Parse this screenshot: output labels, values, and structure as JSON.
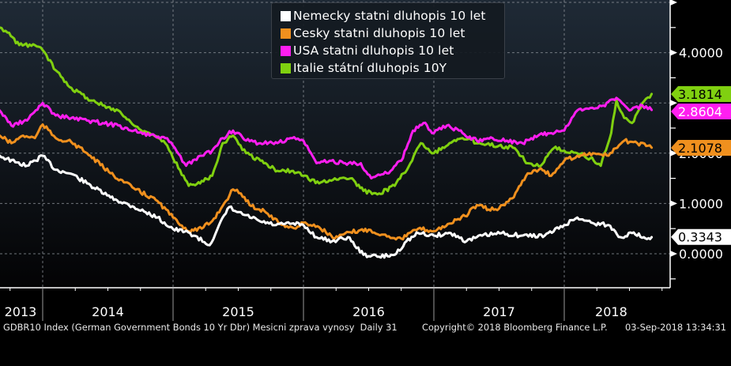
{
  "chart_data": {
    "type": "line",
    "title": "",
    "xlabel": "",
    "ylabel": "",
    "x_range": [
      2013.67,
      2018.73
    ],
    "ylim": [
      -0.65,
      5.05
    ],
    "y_axis_side": "right",
    "y_ticks": [
      0,
      1,
      2,
      4
    ],
    "y_tick_labels": [
      "0.0000",
      "1.0000",
      "2.0000",
      "4.0000"
    ],
    "y_minor_ticks": [
      -0.5,
      0.5,
      1.5,
      2.5,
      3,
      3.5,
      4.5,
      5
    ],
    "gridlines_y": [
      0,
      1,
      2,
      3,
      4,
      5
    ],
    "gridlines_x": [
      2014,
      2015,
      2016,
      2017,
      2018
    ],
    "x_tick_labels": [
      {
        "label": "2013",
        "center": 2013.83
      },
      {
        "label": "2014",
        "center": 2014.5
      },
      {
        "label": "2015",
        "center": 2015.5
      },
      {
        "label": "2016",
        "center": 2016.5
      },
      {
        "label": "2017",
        "center": 2017.5
      },
      {
        "label": "2018",
        "center": 2018.36
      }
    ],
    "year_separators": [
      2014,
      2015,
      2016,
      2017,
      2018
    ],
    "grid": true,
    "legend": {
      "placement": "top-center"
    },
    "series": [
      {
        "name": "Nemecky statni dluhopis 10 let",
        "color": "#ffffff",
        "label_text_color": "#000000",
        "last_value": "0.3343",
        "points": [
          [
            2013.67,
            1.95
          ],
          [
            2013.79,
            1.82
          ],
          [
            2013.88,
            1.75
          ],
          [
            2014.0,
            1.95
          ],
          [
            2014.1,
            1.67
          ],
          [
            2014.22,
            1.59
          ],
          [
            2014.34,
            1.4
          ],
          [
            2014.52,
            1.12
          ],
          [
            2014.7,
            0.93
          ],
          [
            2014.88,
            0.72
          ],
          [
            2015.0,
            0.49
          ],
          [
            2015.13,
            0.41
          ],
          [
            2015.28,
            0.17
          ],
          [
            2015.34,
            0.49
          ],
          [
            2015.43,
            0.93
          ],
          [
            2015.49,
            0.83
          ],
          [
            2015.55,
            0.77
          ],
          [
            2015.67,
            0.64
          ],
          [
            2015.79,
            0.57
          ],
          [
            2015.91,
            0.6
          ],
          [
            2016.0,
            0.57
          ],
          [
            2016.1,
            0.33
          ],
          [
            2016.22,
            0.25
          ],
          [
            2016.34,
            0.33
          ],
          [
            2016.46,
            -0.02
          ],
          [
            2016.58,
            -0.06
          ],
          [
            2016.7,
            -0.02
          ],
          [
            2016.79,
            0.25
          ],
          [
            2016.88,
            0.41
          ],
          [
            2017.0,
            0.36
          ],
          [
            2017.13,
            0.41
          ],
          [
            2017.25,
            0.25
          ],
          [
            2017.37,
            0.36
          ],
          [
            2017.52,
            0.41
          ],
          [
            2017.67,
            0.36
          ],
          [
            2017.85,
            0.36
          ],
          [
            2018.0,
            0.57
          ],
          [
            2018.1,
            0.72
          ],
          [
            2018.22,
            0.61
          ],
          [
            2018.34,
            0.57
          ],
          [
            2018.43,
            0.33
          ],
          [
            2018.52,
            0.41
          ],
          [
            2018.61,
            0.33
          ],
          [
            2018.67,
            0.33
          ]
        ]
      },
      {
        "name": "Cesky statni dluhopis 10 let",
        "color": "#f0901e",
        "label_text_color": "#000000",
        "last_value": "2.1078",
        "points": [
          [
            2013.67,
            2.35
          ],
          [
            2013.76,
            2.2
          ],
          [
            2013.85,
            2.35
          ],
          [
            2013.94,
            2.3
          ],
          [
            2014.0,
            2.57
          ],
          [
            2014.1,
            2.3
          ],
          [
            2014.22,
            2.22
          ],
          [
            2014.34,
            2.0
          ],
          [
            2014.52,
            1.6
          ],
          [
            2014.7,
            1.3
          ],
          [
            2014.88,
            1.05
          ],
          [
            2015.0,
            0.72
          ],
          [
            2015.12,
            0.45
          ],
          [
            2015.22,
            0.5
          ],
          [
            2015.3,
            0.65
          ],
          [
            2015.38,
            0.95
          ],
          [
            2015.46,
            1.28
          ],
          [
            2015.52,
            1.2
          ],
          [
            2015.6,
            0.95
          ],
          [
            2015.7,
            0.85
          ],
          [
            2015.82,
            0.6
          ],
          [
            2015.94,
            0.5
          ],
          [
            2016.0,
            0.62
          ],
          [
            2016.12,
            0.53
          ],
          [
            2016.24,
            0.3
          ],
          [
            2016.36,
            0.43
          ],
          [
            2016.5,
            0.48
          ],
          [
            2016.6,
            0.38
          ],
          [
            2016.75,
            0.3
          ],
          [
            2016.88,
            0.5
          ],
          [
            2017.0,
            0.45
          ],
          [
            2017.12,
            0.6
          ],
          [
            2017.24,
            0.75
          ],
          [
            2017.33,
            0.97
          ],
          [
            2017.42,
            0.88
          ],
          [
            2017.5,
            0.9
          ],
          [
            2017.6,
            1.1
          ],
          [
            2017.72,
            1.6
          ],
          [
            2017.82,
            1.7
          ],
          [
            2017.9,
            1.55
          ],
          [
            2018.0,
            1.85
          ],
          [
            2018.1,
            1.95
          ],
          [
            2018.22,
            2.0
          ],
          [
            2018.34,
            1.95
          ],
          [
            2018.46,
            2.25
          ],
          [
            2018.56,
            2.2
          ],
          [
            2018.67,
            2.11
          ]
        ]
      },
      {
        "name": "USA statni dluhopis 10 let",
        "color": "#ff1ef0",
        "label_text_color": "#ffffff",
        "last_value": "2.8604",
        "points": [
          [
            2013.67,
            2.85
          ],
          [
            2013.76,
            2.55
          ],
          [
            2013.88,
            2.65
          ],
          [
            2014.0,
            3.0
          ],
          [
            2014.1,
            2.75
          ],
          [
            2014.22,
            2.7
          ],
          [
            2014.34,
            2.65
          ],
          [
            2014.46,
            2.6
          ],
          [
            2014.58,
            2.55
          ],
          [
            2014.7,
            2.45
          ],
          [
            2014.82,
            2.35
          ],
          [
            2014.94,
            2.3
          ],
          [
            2015.0,
            2.15
          ],
          [
            2015.1,
            1.75
          ],
          [
            2015.22,
            1.95
          ],
          [
            2015.3,
            2.05
          ],
          [
            2015.38,
            2.3
          ],
          [
            2015.46,
            2.45
          ],
          [
            2015.56,
            2.25
          ],
          [
            2015.67,
            2.2
          ],
          [
            2015.8,
            2.2
          ],
          [
            2015.9,
            2.3
          ],
          [
            2016.0,
            2.25
          ],
          [
            2016.1,
            1.8
          ],
          [
            2016.2,
            1.85
          ],
          [
            2016.32,
            1.8
          ],
          [
            2016.44,
            1.8
          ],
          [
            2016.52,
            1.5
          ],
          [
            2016.64,
            1.6
          ],
          [
            2016.75,
            1.85
          ],
          [
            2016.84,
            2.45
          ],
          [
            2016.92,
            2.6
          ],
          [
            2017.0,
            2.4
          ],
          [
            2017.1,
            2.55
          ],
          [
            2017.22,
            2.4
          ],
          [
            2017.33,
            2.25
          ],
          [
            2017.45,
            2.3
          ],
          [
            2017.56,
            2.25
          ],
          [
            2017.68,
            2.2
          ],
          [
            2017.8,
            2.35
          ],
          [
            2017.9,
            2.4
          ],
          [
            2018.0,
            2.45
          ],
          [
            2018.1,
            2.85
          ],
          [
            2018.2,
            2.9
          ],
          [
            2018.3,
            2.95
          ],
          [
            2018.4,
            3.1
          ],
          [
            2018.5,
            2.85
          ],
          [
            2018.6,
            2.95
          ],
          [
            2018.67,
            2.86
          ]
        ]
      },
      {
        "name": "Italie státní dluhopis 10Y",
        "color": "#80d010",
        "label_text_color": "#000000",
        "last_value": "3.1814",
        "points": [
          [
            2013.67,
            4.5
          ],
          [
            2013.73,
            4.4
          ],
          [
            2013.82,
            4.15
          ],
          [
            2013.94,
            4.15
          ],
          [
            2014.0,
            4.05
          ],
          [
            2014.1,
            3.65
          ],
          [
            2014.22,
            3.3
          ],
          [
            2014.34,
            3.1
          ],
          [
            2014.46,
            2.95
          ],
          [
            2014.58,
            2.85
          ],
          [
            2014.7,
            2.55
          ],
          [
            2014.82,
            2.4
          ],
          [
            2014.94,
            2.2
          ],
          [
            2015.0,
            1.9
          ],
          [
            2015.12,
            1.35
          ],
          [
            2015.22,
            1.45
          ],
          [
            2015.3,
            1.55
          ],
          [
            2015.38,
            2.2
          ],
          [
            2015.46,
            2.35
          ],
          [
            2015.56,
            2.0
          ],
          [
            2015.67,
            1.85
          ],
          [
            2015.8,
            1.65
          ],
          [
            2015.92,
            1.65
          ],
          [
            2016.0,
            1.55
          ],
          [
            2016.12,
            1.4
          ],
          [
            2016.24,
            1.5
          ],
          [
            2016.36,
            1.5
          ],
          [
            2016.46,
            1.25
          ],
          [
            2016.58,
            1.2
          ],
          [
            2016.7,
            1.35
          ],
          [
            2016.82,
            1.8
          ],
          [
            2016.9,
            2.2
          ],
          [
            2017.0,
            2.0
          ],
          [
            2017.12,
            2.2
          ],
          [
            2017.22,
            2.3
          ],
          [
            2017.35,
            2.2
          ],
          [
            2017.5,
            2.15
          ],
          [
            2017.62,
            2.1
          ],
          [
            2017.72,
            1.8
          ],
          [
            2017.82,
            1.75
          ],
          [
            2017.92,
            2.1
          ],
          [
            2018.0,
            2.05
          ],
          [
            2018.1,
            2.0
          ],
          [
            2018.2,
            1.9
          ],
          [
            2018.28,
            1.75
          ],
          [
            2018.36,
            2.4
          ],
          [
            2018.4,
            3.05
          ],
          [
            2018.46,
            2.7
          ],
          [
            2018.52,
            2.6
          ],
          [
            2018.6,
            3.0
          ],
          [
            2018.67,
            3.18
          ]
        ]
      }
    ]
  },
  "legend_items": [
    {
      "label": "Nemecky statni dluhopis 10 let",
      "color": "#ffffff"
    },
    {
      "label": "Cesky statni dluhopis 10 let",
      "color": "#f0901e"
    },
    {
      "label": "USA statni dluhopis 10 let",
      "color": "#ff1ef0"
    },
    {
      "label": "Italie státní dluhopis 10Y",
      "color": "#80d010"
    }
  ],
  "footer": {
    "index_text": "GDBR10 Index (German Government Bonds 10 Yr Dbr) Mesicni zprava vynosy  Daily 31",
    "copyright": "Copyright© 2018 Bloomberg Finance L.P.",
    "timestamp": "03-Sep-2018 13:34:31"
  }
}
